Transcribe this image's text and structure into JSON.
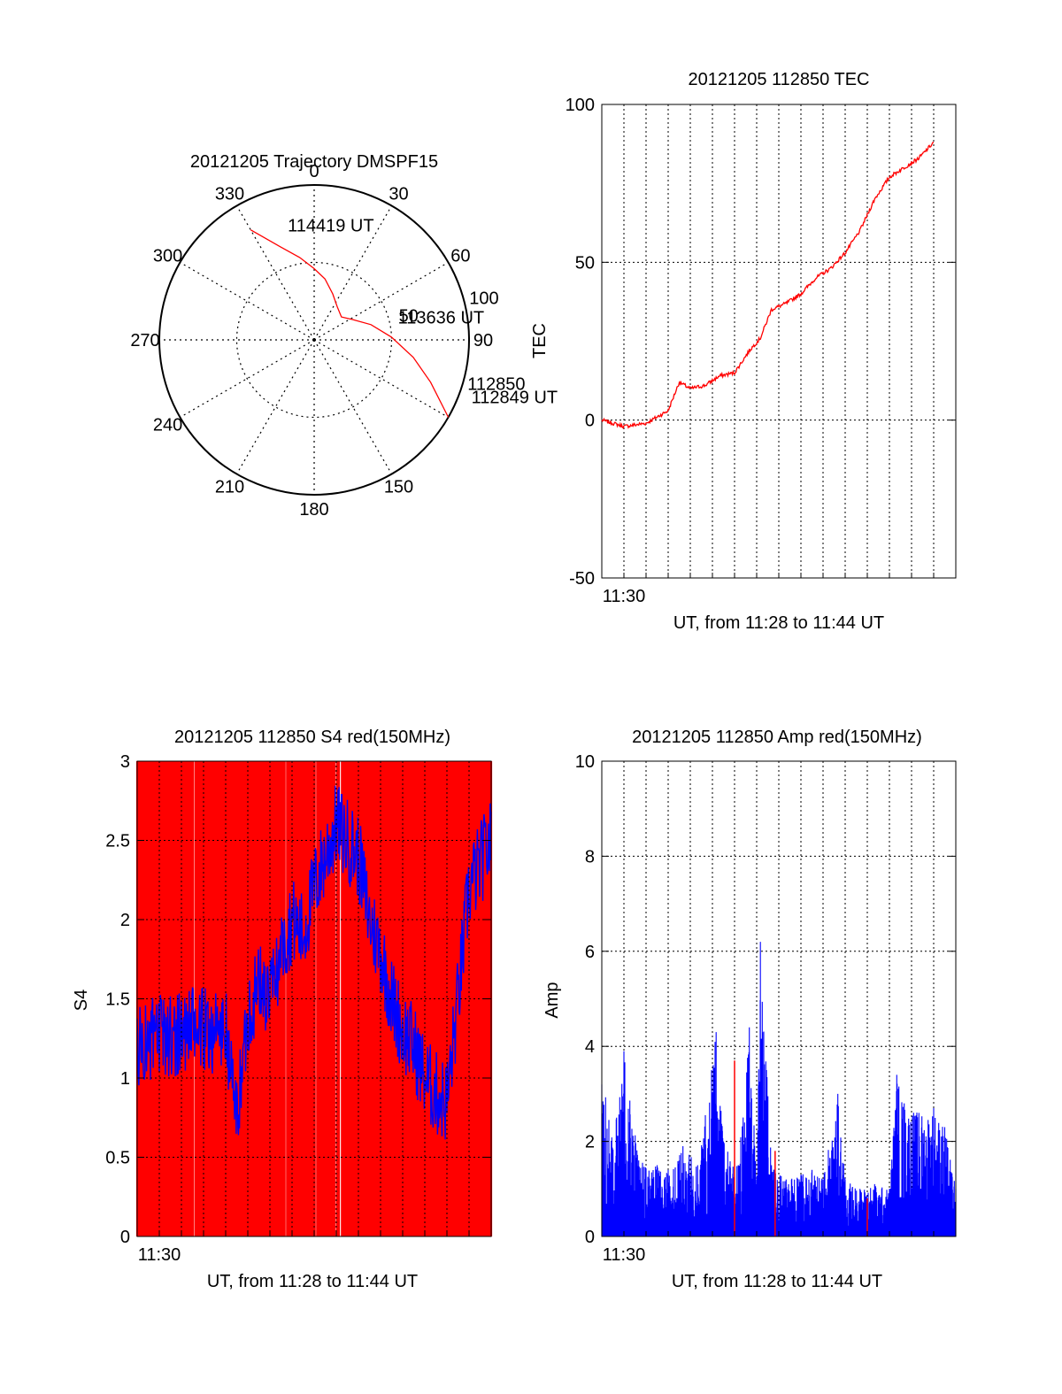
{
  "chart_data": [
    {
      "type": "polar",
      "title": "20121205 Trajectory DMSPF15",
      "angle_ticks": [
        "0",
        "30",
        "60",
        "90",
        "120",
        "150",
        "180",
        "210",
        "240",
        "270",
        "300",
        "330"
      ],
      "radial_ticks": [
        "50",
        "100"
      ],
      "rlim": [
        0,
        100
      ],
      "grid": true,
      "series": [
        {
          "color": "#ff0000",
          "points": [
            [
              330,
              82
            ],
            [
              340,
              64
            ],
            [
              350,
              54
            ],
            [
              0,
              46
            ],
            [
              10,
              40
            ],
            [
              22,
              32
            ],
            [
              35,
              26
            ],
            [
              50,
              23
            ],
            [
              62,
              28
            ],
            [
              75,
              38
            ],
            [
              88,
              50
            ],
            [
              100,
              65
            ],
            [
              110,
              80
            ],
            [
              120,
              100
            ]
          ]
        }
      ],
      "annotations": [
        {
          "text": "114419 UT",
          "az": 347,
          "r": 76
        },
        {
          "text": "113636 UT",
          "az": 75,
          "r": 56
        },
        {
          "text": "112849 UT",
          "az": 110,
          "r": 108
        },
        {
          "text": "112850",
          "az": 106,
          "r": 103
        }
      ]
    },
    {
      "type": "line",
      "title": "20121205 112850 TEC",
      "xlabel": "UT, from 11:28 to 11:44 UT",
      "ylabel": "TEC",
      "xlim": [
        "11:29:00",
        "11:45:00"
      ],
      "ylim": [
        -50,
        100
      ],
      "y_ticks": [
        "-50",
        "0",
        "50",
        "100"
      ],
      "x_tick_labels": [
        {
          "at": "11:30:00",
          "label": "11:30"
        }
      ],
      "grid": true,
      "series": [
        {
          "color": "#ff0000",
          "points": [
            [
              "11:29:00",
              0
            ],
            [
              "11:30:00",
              -2
            ],
            [
              "11:31:00",
              -1
            ],
            [
              "11:32:00",
              3
            ],
            [
              "11:32:30",
              12
            ],
            [
              "11:33:00",
              10
            ],
            [
              "11:33:40",
              11
            ],
            [
              "11:34:20",
              14
            ],
            [
              "11:35:00",
              15
            ],
            [
              "11:35:40",
              22
            ],
            [
              "11:36:10",
              26
            ],
            [
              "11:36:40",
              35
            ],
            [
              "11:37:20",
              37
            ],
            [
              "11:38:00",
              40
            ],
            [
              "11:38:40",
              45
            ],
            [
              "11:39:20",
              48
            ],
            [
              "11:40:00",
              53
            ],
            [
              "11:40:40",
              60
            ],
            [
              "11:41:20",
              70
            ],
            [
              "11:42:00",
              77
            ],
            [
              "11:42:40",
              80
            ],
            [
              "11:43:20",
              83
            ],
            [
              "11:44:00",
              88
            ]
          ]
        }
      ]
    },
    {
      "type": "line",
      "title": "20121205 112850 S4 red(150MHz)",
      "xlabel": "UT, from 11:28 to 11:44 UT",
      "ylabel": "S4",
      "xlim": [
        "11:29:00",
        "11:45:00"
      ],
      "ylim": [
        0,
        3
      ],
      "y_ticks": [
        "0",
        "0.5",
        "1",
        "1.5",
        "2",
        "2.5",
        "3"
      ],
      "x_tick_labels": [
        {
          "at": "11:30:00",
          "label": "11:30"
        }
      ],
      "grid": true,
      "series": [
        {
          "color": "#ff0000",
          "style": "dense vertical spikes 0 to 3",
          "time_range": [
            "11:29:00",
            "11:45:00"
          ]
        },
        {
          "color": "#0000ff",
          "points": [
            [
              "11:29:00",
              1.2
            ],
            [
              "11:30:00",
              1.25
            ],
            [
              "11:31:00",
              1.3
            ],
            [
              "11:32:00",
              1.3
            ],
            [
              "11:33:00",
              1.3
            ],
            [
              "11:33:30",
              0.75
            ],
            [
              "11:34:00",
              1.4
            ],
            [
              "11:34:30",
              1.6
            ],
            [
              "11:35:00",
              1.5
            ],
            [
              "11:35:30",
              1.8
            ],
            [
              "11:36:00",
              2.0
            ],
            [
              "11:36:30",
              1.9
            ],
            [
              "11:37:00",
              2.2
            ],
            [
              "11:37:30",
              2.4
            ],
            [
              "11:38:00",
              2.6
            ],
            [
              "11:38:30",
              2.5
            ],
            [
              "11:39:00",
              2.4
            ],
            [
              "11:39:30",
              2.0
            ],
            [
              "11:40:00",
              1.8
            ],
            [
              "11:40:30",
              1.5
            ],
            [
              "11:41:00",
              1.3
            ],
            [
              "11:41:30",
              1.2
            ],
            [
              "11:42:00",
              1.0
            ],
            [
              "11:42:30",
              0.9
            ],
            [
              "11:43:00",
              0.85
            ],
            [
              "11:43:30",
              1.5
            ],
            [
              "11:44:00",
              2.2
            ],
            [
              "11:45:00",
              2.5
            ]
          ]
        }
      ]
    },
    {
      "type": "bar",
      "title": "20121205 112850 Amp red(150MHz)",
      "xlabel": "UT, from 11:28 to 11:44 UT",
      "ylabel": "Amp",
      "xlim": [
        "11:29:00",
        "11:45:00"
      ],
      "ylim": [
        0,
        10
      ],
      "y_ticks": [
        "0",
        "2",
        "4",
        "6",
        "8",
        "10"
      ],
      "x_tick_labels": [
        {
          "at": "11:30:00",
          "label": "11:30"
        }
      ],
      "grid": true,
      "series": [
        {
          "color": "#0000ff",
          "points": [
            [
              "11:29:00",
              3.2
            ],
            [
              "11:29:40",
              2.5
            ],
            [
              "11:30:00",
              3.9
            ],
            [
              "11:30:40",
              1.6
            ],
            [
              "11:31:30",
              1.5
            ],
            [
              "11:32:00",
              1.4
            ],
            [
              "11:32:40",
              1.9
            ],
            [
              "11:33:20",
              1.5
            ],
            [
              "11:34:10",
              4.3
            ],
            [
              "11:34:30",
              2.0
            ],
            [
              "11:35:10",
              1.5
            ],
            [
              "11:35:40",
              4.4
            ],
            [
              "11:36:00",
              1.2
            ],
            [
              "11:36:10",
              6.2
            ],
            [
              "11:36:40",
              1.5
            ],
            [
              "11:37:20",
              1.2
            ],
            [
              "11:38:00",
              1.3
            ],
            [
              "11:38:30",
              1.4
            ],
            [
              "11:39:00",
              1.2
            ],
            [
              "11:39:40",
              3.0
            ],
            [
              "11:40:00",
              1.2
            ],
            [
              "11:40:40",
              1.0
            ],
            [
              "11:41:20",
              1.1
            ],
            [
              "11:42:00",
              1.0
            ],
            [
              "11:42:20",
              3.4
            ],
            [
              "11:42:40",
              2.8
            ],
            [
              "11:43:20",
              2.6
            ],
            [
              "11:44:00",
              2.7
            ],
            [
              "11:44:30",
              2.3
            ],
            [
              "11:45:00",
              1.0
            ]
          ]
        },
        {
          "color": "#ff0000",
          "points": [
            [
              "11:35:00",
              3.7
            ],
            [
              "11:36:50",
              1.8
            ],
            [
              "11:41:00",
              0.8
            ]
          ]
        }
      ]
    }
  ]
}
